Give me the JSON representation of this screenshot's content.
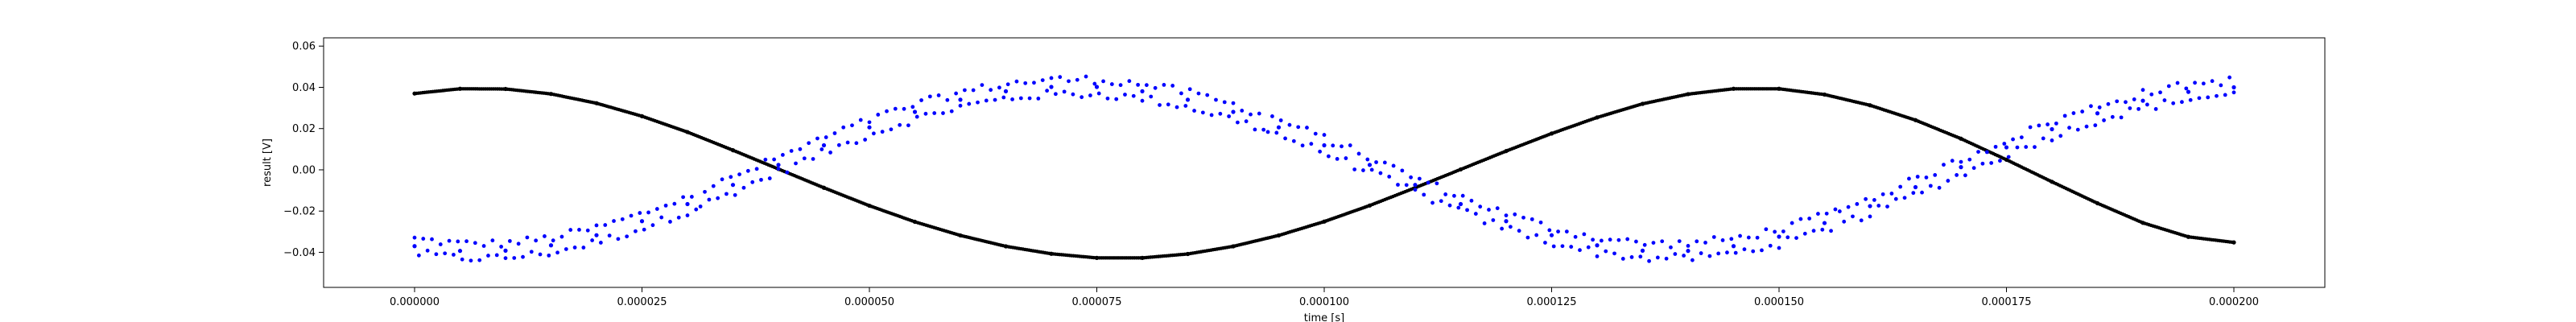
{
  "chart_data": {
    "type": "scatter",
    "xlabel": "time [s]",
    "ylabel": "result [V]",
    "xlim": [
      -1e-05,
      0.00021
    ],
    "ylim": [
      -0.057,
      0.064
    ],
    "xticks": [
      0.0,
      2.5e-05,
      5e-05,
      7.5e-05,
      0.0001,
      0.000125,
      0.00015,
      0.000175,
      0.0002
    ],
    "xtick_labels": [
      "0.000000",
      "0.000025",
      "0.000050",
      "0.000075",
      "0.000100",
      "0.000125",
      "0.000150",
      "0.000175",
      "0.000200"
    ],
    "yticks": [
      -0.04,
      -0.02,
      0.0,
      0.02,
      0.04,
      0.06
    ],
    "ytick_labels": [
      "−0.04",
      "−0.02",
      "0.00",
      "0.02",
      "0.04",
      "0.06"
    ],
    "grid": false,
    "series": [
      {
        "color": "#000000",
        "marker": "dot",
        "points": [
          [
            0.0,
            0.037
          ],
          [
            5e-06,
            0.0393
          ],
          [
            1e-05,
            0.0392
          ],
          [
            1.5e-05,
            0.0368
          ],
          [
            2e-05,
            0.0323
          ],
          [
            2.5e-05,
            0.026
          ],
          [
            3e-05,
            0.0183
          ],
          [
            3.5e-05,
            0.0095
          ],
          [
            4e-05,
            0.0004
          ],
          [
            4.5e-05,
            -0.0087
          ],
          [
            5e-05,
            -0.0174
          ],
          [
            5.5e-05,
            -0.0252
          ],
          [
            6e-05,
            -0.0318
          ],
          [
            6.5e-05,
            -0.0371
          ],
          [
            7e-05,
            -0.0407
          ],
          [
            7.5e-05,
            -0.0427
          ],
          [
            8e-05,
            -0.0427
          ],
          [
            8.5e-05,
            -0.0408
          ],
          [
            9e-05,
            -0.0371
          ],
          [
            9.5e-05,
            -0.0318
          ],
          [
            0.0001,
            -0.0251
          ],
          [
            0.000105,
            -0.0173
          ],
          [
            0.00011,
            -0.0087
          ],
          [
            0.000115,
            0.0002
          ],
          [
            0.00012,
            0.0091
          ],
          [
            0.000125,
            0.0176
          ],
          [
            0.00013,
            0.0254
          ],
          [
            0.000135,
            0.032
          ],
          [
            0.00014,
            0.0367
          ],
          [
            0.000145,
            0.0393
          ],
          [
            0.00015,
            0.0393
          ],
          [
            0.000155,
            0.0365
          ],
          [
            0.00016,
            0.0313
          ],
          [
            0.000165,
            0.0241
          ],
          [
            0.00017,
            0.0151
          ],
          [
            0.000175,
            0.0049
          ],
          [
            0.00018,
            -0.0058
          ],
          [
            0.000185,
            -0.0162
          ],
          [
            0.00019,
            -0.0257
          ],
          [
            0.000195,
            -0.0325
          ],
          [
            0.0002,
            -0.0352
          ]
        ]
      },
      {
        "color": "#0000ff",
        "marker": "dot",
        "points": [
          [
            0.0,
            -0.037
          ],
          [
            5e-06,
            -0.0393
          ],
          [
            1e-05,
            -0.0392
          ],
          [
            1.5e-05,
            -0.0366
          ],
          [
            2e-05,
            -0.0317
          ],
          [
            2.5e-05,
            -0.0249
          ],
          [
            3e-05,
            -0.0166
          ],
          [
            3.5e-05,
            -0.0073
          ],
          [
            4e-05,
            0.0024
          ],
          [
            4.5e-05,
            0.0119
          ],
          [
            5e-05,
            0.0206
          ],
          [
            5.5e-05,
            0.0281
          ],
          [
            6e-05,
            0.034
          ],
          [
            6.5e-05,
            0.0381
          ],
          [
            7e-05,
            0.0402
          ],
          [
            7.5e-05,
            0.0402
          ],
          [
            8e-05,
            0.0381
          ],
          [
            8.5e-05,
            0.034
          ],
          [
            9e-05,
            0.0281
          ],
          [
            9.5e-05,
            0.0206
          ],
          [
            0.0001,
            0.0119
          ],
          [
            0.000105,
            0.0024
          ],
          [
            0.00011,
            -0.0073
          ],
          [
            0.000115,
            -0.0166
          ],
          [
            0.00012,
            -0.0249
          ],
          [
            0.000125,
            -0.0317
          ],
          [
            0.00013,
            -0.0366
          ],
          [
            0.000135,
            -0.0392
          ],
          [
            0.00014,
            -0.0393
          ],
          [
            0.000145,
            -0.037
          ],
          [
            0.00015,
            -0.0324
          ],
          [
            0.000155,
            -0.0258
          ],
          [
            0.00016,
            -0.0176
          ],
          [
            0.000165,
            -0.0084
          ],
          [
            0.00017,
            0.0013
          ],
          [
            0.000175,
            0.0109
          ],
          [
            0.00018,
            0.0197
          ],
          [
            0.000185,
            0.0274
          ],
          [
            0.00019,
            0.0335
          ],
          [
            0.000195,
            0.0378
          ],
          [
            0.0002,
            0.04
          ]
        ]
      }
    ]
  }
}
